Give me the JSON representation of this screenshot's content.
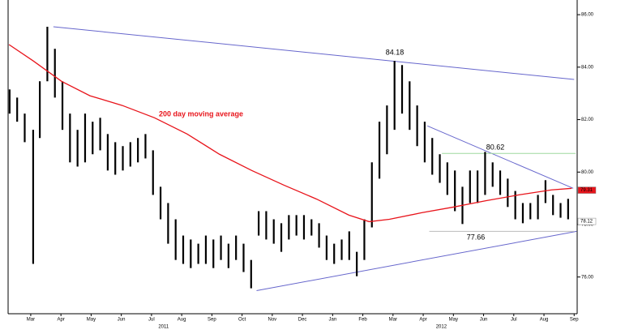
{
  "chart_data": {
    "type": "range-bar",
    "ylim": [
      74.6,
      86.56
    ],
    "xlim": [
      -0.75,
      18.1
    ],
    "yticks": [
      {
        "value": 76,
        "label": "76.00"
      },
      {
        "value": 78,
        "label": "78.00"
      },
      {
        "value": 80,
        "label": "80.00"
      },
      {
        "value": 82,
        "label": "82.00"
      },
      {
        "value": 84,
        "label": "84.00"
      },
      {
        "value": 86,
        "label": "86.00"
      }
    ],
    "xticks": [
      {
        "value": 0,
        "label": "Mar"
      },
      {
        "value": 1,
        "label": "Apr"
      },
      {
        "value": 2,
        "label": "May"
      },
      {
        "value": 3,
        "label": "Jun"
      },
      {
        "value": 4,
        "label": "Jul"
      },
      {
        "value": 5,
        "label": "Aug"
      },
      {
        "value": 6,
        "label": "Sep"
      },
      {
        "value": 7,
        "label": "Oct"
      },
      {
        "value": 8,
        "label": "Nov"
      },
      {
        "value": 9,
        "label": "Dec"
      },
      {
        "value": 10,
        "label": "Jan"
      },
      {
        "value": 11,
        "label": "Feb"
      },
      {
        "value": 12,
        "label": "Mar"
      },
      {
        "value": 13,
        "label": "Apr"
      },
      {
        "value": 14,
        "label": "May"
      },
      {
        "value": 15,
        "label": "Jun"
      },
      {
        "value": 16,
        "label": "Jul"
      },
      {
        "value": 17,
        "label": "Aug"
      },
      {
        "value": 18,
        "label": "Sep"
      }
    ],
    "year_labels": [
      {
        "value": 4.4,
        "label": "2011"
      },
      {
        "value": 13.6,
        "label": "2012"
      }
    ],
    "color": "#000000",
    "x": [
      -0.7,
      -0.45,
      -0.2,
      0.08,
      0.3,
      0.55,
      0.8,
      1.05,
      1.3,
      1.55,
      1.8,
      2.05,
      2.3,
      2.55,
      2.8,
      3.05,
      3.3,
      3.55,
      3.8,
      4.05,
      4.3,
      4.55,
      4.8,
      5.05,
      5.3,
      5.55,
      5.8,
      6.05,
      6.3,
      6.55,
      6.8,
      7.05,
      7.3,
      7.55,
      7.8,
      8.05,
      8.3,
      8.55,
      8.8,
      9.05,
      9.3,
      9.55,
      9.8,
      10.05,
      10.3,
      10.55,
      10.8,
      11.05,
      11.3,
      11.55,
      11.8,
      12.05,
      12.3,
      12.55,
      12.8,
      13.05,
      13.3,
      13.55,
      13.8,
      14.05,
      14.3,
      14.55,
      14.8,
      15.05,
      15.3,
      15.55,
      15.8,
      16.05,
      16.3,
      16.55,
      16.8,
      17.05,
      17.3,
      17.55,
      17.8
    ],
    "high": [
      83.15,
      82.84,
      82.23,
      81.61,
      83.46,
      85.54,
      84.7,
      83.46,
      82.23,
      81.61,
      82.23,
      81.92,
      82.07,
      81.45,
      81.14,
      80.99,
      81.14,
      81.3,
      81.45,
      80.83,
      79.44,
      78.82,
      78.2,
      77.58,
      77.43,
      77.27,
      77.58,
      77.43,
      77.58,
      77.27,
      77.58,
      77.27,
      76.65,
      78.51,
      78.51,
      78.2,
      78.05,
      78.36,
      78.36,
      78.36,
      78.2,
      78.05,
      77.58,
      77.27,
      77.43,
      77.74,
      76.96,
      78.2,
      80.37,
      81.92,
      82.54,
      84.24,
      84.08,
      83.46,
      82.54,
      81.92,
      81.3,
      80.68,
      80.37,
      80.06,
      79.44,
      80.06,
      80.06,
      80.77,
      80.37,
      80.06,
      79.75,
      79.28,
      78.82,
      78.82,
      79.13,
      79.69,
      79.13,
      78.82,
      78.98
    ],
    "low": [
      82.23,
      81.92,
      81.14,
      76.5,
      81.3,
      83.46,
      82.84,
      81.61,
      80.37,
      80.21,
      80.37,
      80.68,
      80.83,
      80.06,
      79.9,
      80.06,
      80.21,
      80.37,
      80.52,
      79.13,
      78.2,
      77.27,
      76.65,
      76.5,
      76.34,
      76.5,
      76.5,
      76.34,
      76.65,
      76.34,
      76.65,
      76.19,
      75.57,
      77.58,
      77.43,
      77.27,
      76.96,
      77.43,
      77.58,
      77.43,
      77.58,
      77.12,
      76.65,
      76.5,
      76.65,
      76.65,
      76.03,
      76.65,
      77.89,
      79.75,
      80.68,
      81.61,
      82.23,
      81.61,
      80.99,
      80.37,
      79.9,
      79.59,
      79.13,
      78.51,
      78.02,
      78.82,
      78.82,
      79.13,
      79.44,
      79.13,
      78.67,
      78.2,
      78.05,
      78.2,
      78.2,
      78.82,
      78.36,
      78.26,
      78.2
    ],
    "moving_average": {
      "name": "200 day moving average",
      "color": "#e8141b",
      "x": [
        -0.72,
        0.08,
        1.02,
        1.96,
        3.03,
        4.1,
        5.18,
        6.25,
        7.32,
        8.39,
        9.47,
        10.54,
        11.21,
        11.88,
        12.95,
        14.02,
        15.09,
        16.17,
        17.25,
        17.92
      ],
      "values": [
        84.86,
        84.24,
        83.46,
        82.91,
        82.54,
        82.07,
        81.45,
        80.68,
        80.06,
        79.5,
        78.97,
        78.36,
        78.11,
        78.2,
        78.45,
        78.67,
        78.91,
        79.13,
        79.32,
        79.38
      ]
    },
    "trendlines": [
      {
        "color": "#6666cc",
        "x": [
          0.75,
          18.0
        ],
        "values": [
          85.54,
          83.53
        ]
      },
      {
        "color": "#6666cc",
        "x": [
          7.48,
          18.08
        ],
        "values": [
          75.48,
          77.74
        ]
      },
      {
        "color": "#6666cc",
        "x": [
          13.14,
          17.97
        ],
        "values": [
          81.76,
          79.38
        ]
      },
      {
        "color": "#9fd89f",
        "x": [
          13.62,
          18.05
        ],
        "values": [
          80.71,
          80.71
        ]
      },
      {
        "color": "#bbbbbb",
        "x": [
          13.2,
          18.0
        ],
        "values": [
          77.74,
          77.74
        ]
      }
    ],
    "annotations": [
      "84.18",
      "80.62",
      "77.66"
    ],
    "last_values": [
      {
        "value": 79.31,
        "label": "79.31",
        "color": "#e8141b"
      },
      {
        "value": 78.12,
        "label": "78.12",
        "color": "#ffffff"
      }
    ]
  }
}
